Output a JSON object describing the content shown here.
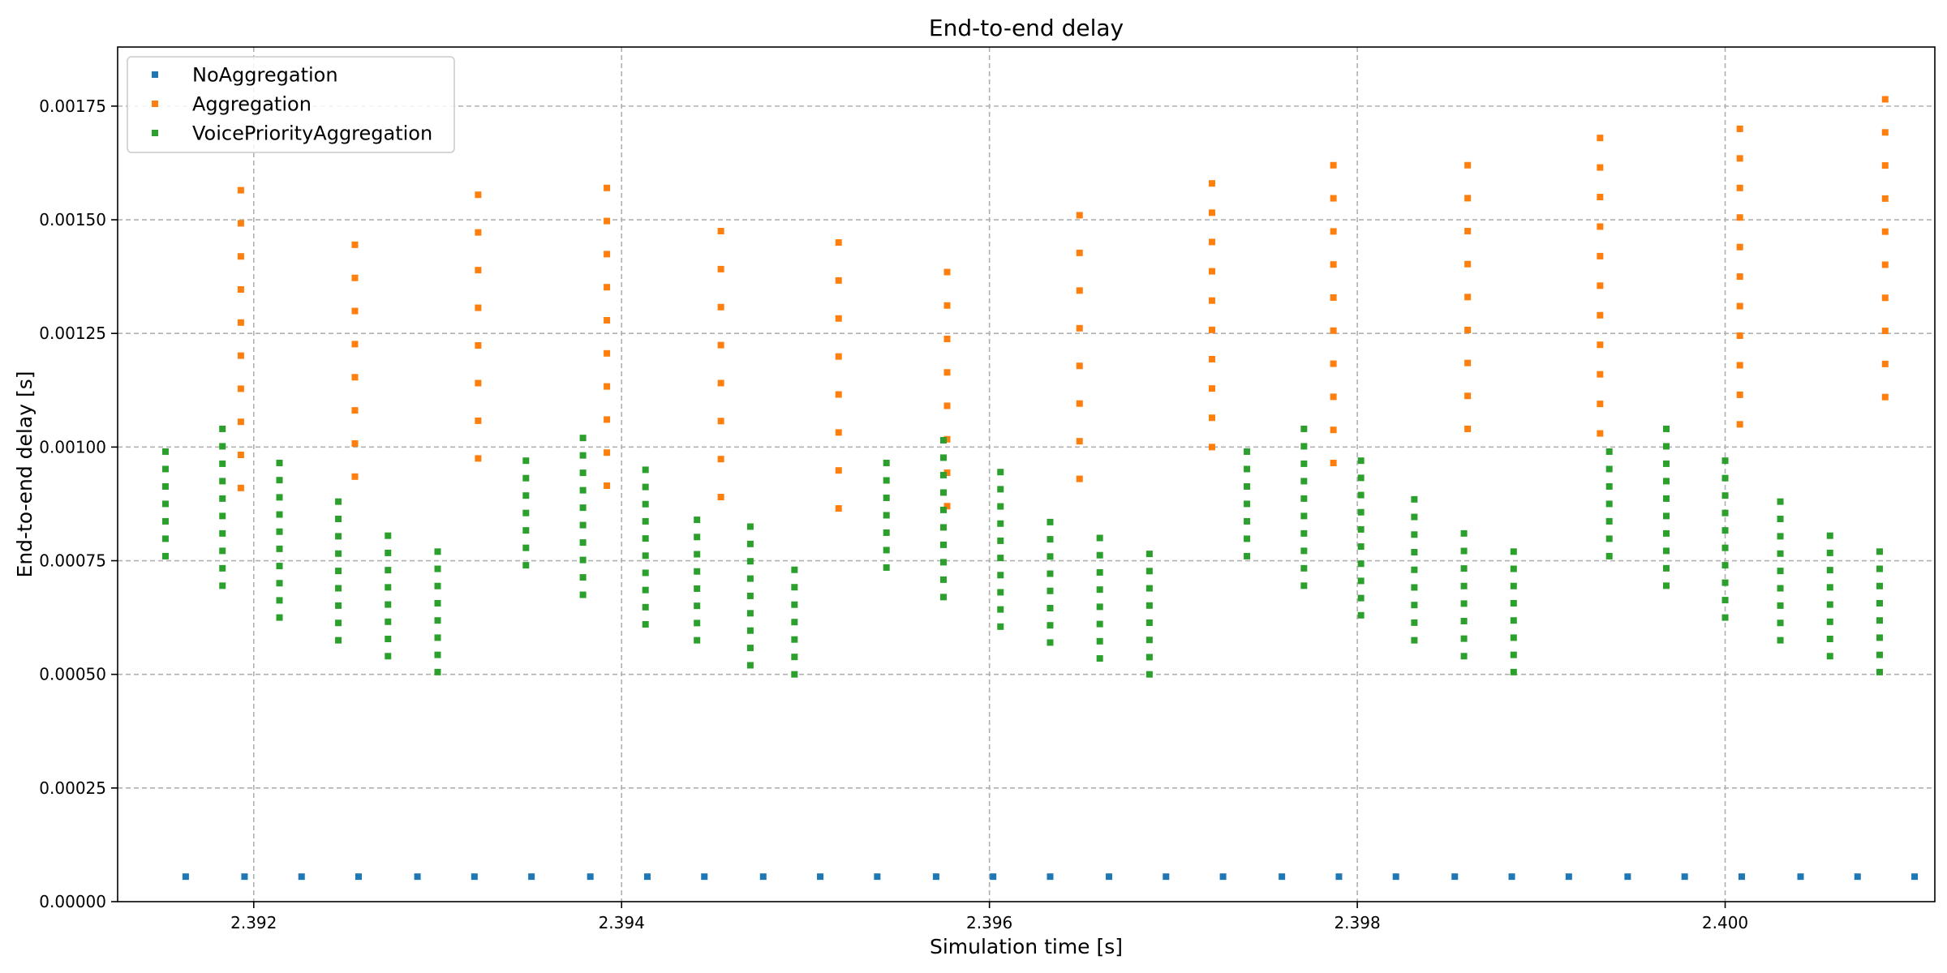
{
  "chart_data": {
    "type": "scatter",
    "title": "End-to-end delay",
    "xlabel": "Simulation time [s]",
    "ylabel": "End-to-end delay [s]",
    "xlim": [
      2.39126,
      2.40114
    ],
    "ylim": [
      0,
      0.00188
    ],
    "grid": true,
    "legend_position": "top-left",
    "x_ticks": [
      2.392,
      2.394,
      2.396,
      2.398,
      2.4
    ],
    "x_tick_labels": [
      "2.392",
      "2.394",
      "2.396",
      "2.398",
      "2.400"
    ],
    "y_ticks": [
      0,
      0.00025,
      0.0005,
      0.00075,
      0.001,
      0.00125,
      0.0015,
      0.00175
    ],
    "y_tick_labels": [
      "0.00000",
      "0.00025",
      "0.00050",
      "0.00075",
      "0.00100",
      "0.00125",
      "0.00150",
      "0.00175"
    ],
    "series": [
      {
        "name": "NoAggregation",
        "color": "#1f77b4",
        "groups": [
          {
            "x": 2.39163,
            "y0": 5.5e-05,
            "y1": 5.5e-05,
            "n": 1
          },
          {
            "x": 2.39195,
            "y0": 5.5e-05,
            "y1": 5.5e-05,
            "n": 1
          },
          {
            "x": 2.39226,
            "y0": 5.5e-05,
            "y1": 5.5e-05,
            "n": 1
          },
          {
            "x": 2.39257,
            "y0": 5.5e-05,
            "y1": 5.5e-05,
            "n": 1
          },
          {
            "x": 2.39289,
            "y0": 5.5e-05,
            "y1": 5.5e-05,
            "n": 1
          },
          {
            "x": 2.3932,
            "y0": 5.5e-05,
            "y1": 5.5e-05,
            "n": 1
          },
          {
            "x": 2.39351,
            "y0": 5.5e-05,
            "y1": 5.5e-05,
            "n": 1
          },
          {
            "x": 2.39383,
            "y0": 5.5e-05,
            "y1": 5.5e-05,
            "n": 1
          },
          {
            "x": 2.39414,
            "y0": 5.5e-05,
            "y1": 5.5e-05,
            "n": 1
          },
          {
            "x": 2.39445,
            "y0": 5.5e-05,
            "y1": 5.5e-05,
            "n": 1
          },
          {
            "x": 2.39477,
            "y0": 5.5e-05,
            "y1": 5.5e-05,
            "n": 1
          },
          {
            "x": 2.39508,
            "y0": 5.5e-05,
            "y1": 5.5e-05,
            "n": 1
          },
          {
            "x": 2.39539,
            "y0": 5.5e-05,
            "y1": 5.5e-05,
            "n": 1
          },
          {
            "x": 2.39571,
            "y0": 5.5e-05,
            "y1": 5.5e-05,
            "n": 1
          },
          {
            "x": 2.39602,
            "y0": 5.5e-05,
            "y1": 5.5e-05,
            "n": 1
          },
          {
            "x": 2.39633,
            "y0": 5.5e-05,
            "y1": 5.5e-05,
            "n": 1
          },
          {
            "x": 2.39665,
            "y0": 5.5e-05,
            "y1": 5.5e-05,
            "n": 1
          },
          {
            "x": 2.39696,
            "y0": 5.5e-05,
            "y1": 5.5e-05,
            "n": 1
          },
          {
            "x": 2.39727,
            "y0": 5.5e-05,
            "y1": 5.5e-05,
            "n": 1
          },
          {
            "x": 2.39759,
            "y0": 5.5e-05,
            "y1": 5.5e-05,
            "n": 1
          },
          {
            "x": 2.3979,
            "y0": 5.5e-05,
            "y1": 5.5e-05,
            "n": 1
          },
          {
            "x": 2.39821,
            "y0": 5.5e-05,
            "y1": 5.5e-05,
            "n": 1
          },
          {
            "x": 2.39853,
            "y0": 5.5e-05,
            "y1": 5.5e-05,
            "n": 1
          },
          {
            "x": 2.39884,
            "y0": 5.5e-05,
            "y1": 5.5e-05,
            "n": 1
          },
          {
            "x": 2.39915,
            "y0": 5.5e-05,
            "y1": 5.5e-05,
            "n": 1
          },
          {
            "x": 2.39947,
            "y0": 5.5e-05,
            "y1": 5.5e-05,
            "n": 1
          },
          {
            "x": 2.39978,
            "y0": 5.5e-05,
            "y1": 5.5e-05,
            "n": 1
          },
          {
            "x": 2.40009,
            "y0": 5.5e-05,
            "y1": 5.5e-05,
            "n": 1
          },
          {
            "x": 2.40041,
            "y0": 5.5e-05,
            "y1": 5.5e-05,
            "n": 1
          },
          {
            "x": 2.40072,
            "y0": 5.5e-05,
            "y1": 5.5e-05,
            "n": 1
          },
          {
            "x": 2.40103,
            "y0": 5.5e-05,
            "y1": 5.5e-05,
            "n": 1
          }
        ]
      },
      {
        "name": "Aggregation",
        "color": "#ff7f0e",
        "groups": [
          {
            "x": 2.39193,
            "y0": 0.00091,
            "y1": 0.001565,
            "n": 10
          },
          {
            "x": 2.39255,
            "y0": 0.000935,
            "y1": 0.001445,
            "n": 8
          },
          {
            "x": 2.39322,
            "y0": 0.000975,
            "y1": 0.001555,
            "n": 8
          },
          {
            "x": 2.39392,
            "y0": 0.000915,
            "y1": 0.00157,
            "n": 10
          },
          {
            "x": 2.39454,
            "y0": 0.00089,
            "y1": 0.001475,
            "n": 8
          },
          {
            "x": 2.39518,
            "y0": 0.000865,
            "y1": 0.00145,
            "n": 8
          },
          {
            "x": 2.39577,
            "y0": 0.00087,
            "y1": 0.001385,
            "n": 8
          },
          {
            "x": 2.39649,
            "y0": 0.00093,
            "y1": 0.00151,
            "n": 8
          },
          {
            "x": 2.39721,
            "y0": 0.001,
            "y1": 0.00158,
            "n": 10
          },
          {
            "x": 2.39787,
            "y0": 0.000965,
            "y1": 0.00162,
            "n": 10
          },
          {
            "x": 2.3986,
            "y0": 0.00104,
            "y1": 0.00162,
            "n": 9
          },
          {
            "x": 2.39932,
            "y0": 0.00103,
            "y1": 0.00168,
            "n": 11
          },
          {
            "x": 2.40008,
            "y0": 0.00105,
            "y1": 0.0017,
            "n": 11
          },
          {
            "x": 2.40087,
            "y0": 0.00111,
            "y1": 0.001765,
            "n": 10
          }
        ]
      },
      {
        "name": "VoicePriorityAggregation",
        "color": "#2ca02c",
        "groups": [
          {
            "x": 2.39152,
            "y0": 0.00076,
            "y1": 0.00099,
            "n": 7
          },
          {
            "x": 2.39183,
            "y0": 0.000695,
            "y1": 0.00104,
            "n": 10
          },
          {
            "x": 2.39214,
            "y0": 0.000625,
            "y1": 0.000965,
            "n": 10
          },
          {
            "x": 2.39246,
            "y0": 0.000575,
            "y1": 0.00088,
            "n": 9
          },
          {
            "x": 2.39273,
            "y0": 0.00054,
            "y1": 0.000805,
            "n": 8
          },
          {
            "x": 2.393,
            "y0": 0.000505,
            "y1": 0.00077,
            "n": 8
          },
          {
            "x": 2.39348,
            "y0": 0.00074,
            "y1": 0.00097,
            "n": 7
          },
          {
            "x": 2.39379,
            "y0": 0.000675,
            "y1": 0.00102,
            "n": 10
          },
          {
            "x": 2.39413,
            "y0": 0.00061,
            "y1": 0.00095,
            "n": 10
          },
          {
            "x": 2.39441,
            "y0": 0.000575,
            "y1": 0.00084,
            "n": 8
          },
          {
            "x": 2.3947,
            "y0": 0.00052,
            "y1": 0.000825,
            "n": 9
          },
          {
            "x": 2.39494,
            "y0": 0.0005,
            "y1": 0.00073,
            "n": 7
          },
          {
            "x": 2.39544,
            "y0": 0.000735,
            "y1": 0.000965,
            "n": 7
          },
          {
            "x": 2.39575,
            "y0": 0.00067,
            "y1": 0.001015,
            "n": 10
          },
          {
            "x": 2.39606,
            "y0": 0.000605,
            "y1": 0.000945,
            "n": 10
          },
          {
            "x": 2.39633,
            "y0": 0.00057,
            "y1": 0.000835,
            "n": 8
          },
          {
            "x": 2.3966,
            "y0": 0.000535,
            "y1": 0.0008,
            "n": 8
          },
          {
            "x": 2.39687,
            "y0": 0.0005,
            "y1": 0.000765,
            "n": 8
          },
          {
            "x": 2.3974,
            "y0": 0.00076,
            "y1": 0.00099,
            "n": 7
          },
          {
            "x": 2.39771,
            "y0": 0.000695,
            "y1": 0.00104,
            "n": 10
          },
          {
            "x": 2.39802,
            "y0": 0.00063,
            "y1": 0.00097,
            "n": 10
          },
          {
            "x": 2.39831,
            "y0": 0.000575,
            "y1": 0.000885,
            "n": 9
          },
          {
            "x": 2.39858,
            "y0": 0.00054,
            "y1": 0.00081,
            "n": 8
          },
          {
            "x": 2.39885,
            "y0": 0.000505,
            "y1": 0.00077,
            "n": 8
          },
          {
            "x": 2.39937,
            "y0": 0.00076,
            "y1": 0.00099,
            "n": 7
          },
          {
            "x": 2.39968,
            "y0": 0.000695,
            "y1": 0.00104,
            "n": 10
          },
          {
            "x": 2.4,
            "y0": 0.000625,
            "y1": 0.00097,
            "n": 10
          },
          {
            "x": 2.4003,
            "y0": 0.000575,
            "y1": 0.00088,
            "n": 9
          },
          {
            "x": 2.40057,
            "y0": 0.00054,
            "y1": 0.000805,
            "n": 8
          },
          {
            "x": 2.40084,
            "y0": 0.000505,
            "y1": 0.00077,
            "n": 8
          }
        ]
      }
    ]
  }
}
